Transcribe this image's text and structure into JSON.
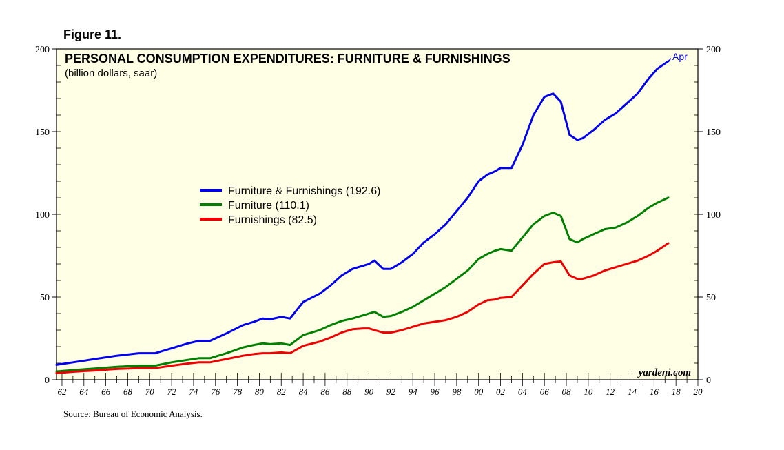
{
  "figure_label": "Figure 11.",
  "source": "Source: Bureau of Economic Analysis.",
  "watermark": "yardeni.com",
  "chart_data": {
    "type": "line",
    "title": "PERSONAL CONSUMPTION EXPENDITURES: FURNITURE & FURNISHINGS",
    "subtitle": "(billion dollars, saar)",
    "ylim": [
      0,
      200
    ],
    "yticks": [
      0,
      50,
      100,
      150,
      200
    ],
    "xlim": [
      1961.5,
      2020
    ],
    "xtick_labels": [
      "62",
      "64",
      "66",
      "68",
      "70",
      "72",
      "74",
      "76",
      "78",
      "80",
      "82",
      "84",
      "86",
      "88",
      "90",
      "92",
      "94",
      "96",
      "98",
      "00",
      "02",
      "04",
      "06",
      "08",
      "10",
      "12",
      "14",
      "16",
      "18",
      "20"
    ],
    "xtick_years": [
      1962,
      1964,
      1966,
      1968,
      1970,
      1972,
      1974,
      1976,
      1978,
      1980,
      1982,
      1984,
      1986,
      1988,
      1990,
      1992,
      1994,
      1996,
      1998,
      2000,
      2002,
      2004,
      2006,
      2008,
      2010,
      2012,
      2014,
      2016,
      2018,
      2020
    ],
    "end_label": "Apr",
    "series": [
      {
        "name": "Furniture & Furnishings",
        "legend": "Furniture & Furnishings (192.6)",
        "color": "#0000ee",
        "x": [
          1961.5,
          1963,
          1965,
          1967,
          1969,
          1970.5,
          1972,
          1973.5,
          1974.5,
          1975.5,
          1977,
          1978.5,
          1979.5,
          1980.3,
          1981,
          1982,
          1982.8,
          1984,
          1985.5,
          1986.5,
          1987.5,
          1988.5,
          1989.5,
          1990,
          1990.5,
          1991.3,
          1992,
          1993,
          1994,
          1995,
          1996,
          1997,
          1998,
          1999,
          2000,
          2000.8,
          2001.5,
          2002,
          2003,
          2004,
          2005,
          2006,
          2006.8,
          2007.5,
          2008.3,
          2009,
          2009.5,
          2010.5,
          2011.5,
          2012.5,
          2013.5,
          2014.5,
          2015.5,
          2016.3,
          2017.3
        ],
        "values": [
          9,
          10.5,
          12.5,
          14.5,
          16,
          16,
          19,
          22,
          23.5,
          23.5,
          28,
          33,
          35,
          37,
          36.5,
          38,
          37,
          47,
          52,
          57,
          63,
          67,
          69,
          70,
          72,
          67,
          67,
          71,
          76,
          83,
          88,
          94,
          102,
          110,
          120,
          124,
          126,
          128,
          128,
          142,
          160,
          171,
          173,
          168,
          148,
          145,
          146,
          151,
          157,
          161,
          167,
          173,
          182,
          188,
          192.6
        ]
      },
      {
        "name": "Furniture",
        "legend": "Furniture (110.1)",
        "color": "#008000",
        "x": [
          1961.5,
          1963,
          1965,
          1967,
          1969,
          1970.5,
          1972,
          1973.5,
          1974.5,
          1975.5,
          1977,
          1978.5,
          1979.5,
          1980.3,
          1981,
          1982,
          1982.8,
          1984,
          1985.5,
          1986.5,
          1987.5,
          1988.5,
          1989.5,
          1990,
          1990.5,
          1991.3,
          1992,
          1993,
          1994,
          1995,
          1996,
          1997,
          1998,
          1999,
          2000,
          2000.8,
          2001.5,
          2002,
          2003,
          2004,
          2005,
          2006,
          2006.8,
          2007.5,
          2008.3,
          2009,
          2009.5,
          2010.5,
          2011.5,
          2012.5,
          2013.5,
          2014.5,
          2015.5,
          2016.3,
          2017.3
        ],
        "values": [
          5,
          5.8,
          6.8,
          7.8,
          8.5,
          8.5,
          10.5,
          12,
          13,
          13,
          16,
          19.5,
          21,
          22,
          21.5,
          22,
          21,
          27,
          30,
          33,
          35.5,
          37,
          39,
          40,
          41,
          38,
          38.5,
          41,
          44,
          48,
          52,
          56,
          61,
          66,
          73,
          76,
          78,
          79,
          78,
          86,
          94,
          99,
          101,
          99,
          85,
          83,
          85,
          88,
          91,
          92,
          95,
          99,
          104,
          107,
          110.1
        ]
      },
      {
        "name": "Furnishings",
        "legend": "Furnishings (82.5)",
        "color": "#ee0000",
        "x": [
          1961.5,
          1963,
          1965,
          1967,
          1969,
          1970.5,
          1972,
          1973.5,
          1974.5,
          1975.5,
          1977,
          1978.5,
          1979.5,
          1980.3,
          1981,
          1982,
          1982.8,
          1984,
          1985.5,
          1986.5,
          1987.5,
          1988.5,
          1989.5,
          1990,
          1990.5,
          1991.3,
          1992,
          1993,
          1994,
          1995,
          1996,
          1997,
          1998,
          1999,
          2000,
          2000.8,
          2001.5,
          2002,
          2003,
          2004,
          2005,
          2006,
          2006.8,
          2007.5,
          2008.3,
          2009,
          2009.5,
          2010.5,
          2011.5,
          2012.5,
          2013.5,
          2014.5,
          2015.5,
          2016.3,
          2017.3
        ],
        "values": [
          4,
          4.8,
          5.6,
          6.5,
          7,
          7,
          8.5,
          9.8,
          10.5,
          10.5,
          12.5,
          14.5,
          15.5,
          16,
          16,
          16.5,
          16,
          20.5,
          23,
          25.5,
          28.5,
          30.5,
          31,
          31,
          30,
          28.5,
          28.5,
          30,
          32,
          34,
          35,
          36,
          38,
          41,
          45.5,
          48,
          48.5,
          49.5,
          50,
          57,
          64,
          70,
          71,
          71.5,
          63,
          61,
          61,
          63,
          66,
          68,
          70,
          72,
          75,
          78,
          82.5
        ]
      }
    ]
  }
}
